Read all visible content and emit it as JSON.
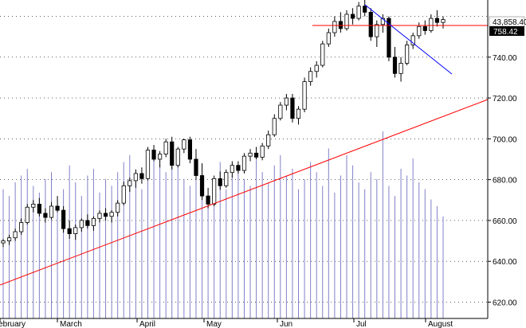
{
  "chart_data": {
    "type": "candlestick",
    "x_labels": [
      "February",
      "March",
      "April",
      "May",
      "Jun",
      "Jul",
      "August"
    ],
    "y_ticks": [
      620,
      640,
      660,
      680,
      700,
      720,
      740
    ],
    "ylim": [
      612,
      768
    ],
    "grid": true,
    "last_price_label": "758.42",
    "volume_label": "43,858.40",
    "candles": [
      [
        649.0,
        651.0,
        647.0,
        650.0
      ],
      [
        650.0,
        653.0,
        648.0,
        651.5
      ],
      [
        651.5,
        656.0,
        650.0,
        654.5
      ],
      [
        654.5,
        661.0,
        653.0,
        659.0
      ],
      [
        659.0,
        668.0,
        658.0,
        666.5
      ],
      [
        666.5,
        670.0,
        664.0,
        668.0
      ],
      [
        668.0,
        671.0,
        662.0,
        663.5
      ],
      [
        663.5,
        666.0,
        659.0,
        661.5
      ],
      [
        661.5,
        669.0,
        660.5,
        667.0
      ],
      [
        667.0,
        672.0,
        664.0,
        665.0
      ],
      [
        665.0,
        667.0,
        654.0,
        656.0
      ],
      [
        656.0,
        660.0,
        651.0,
        653.5
      ],
      [
        653.5,
        658.0,
        650.5,
        656.5
      ],
      [
        656.5,
        661.0,
        654.5,
        660.0
      ],
      [
        660.0,
        663.0,
        656.0,
        657.5
      ],
      [
        657.5,
        662.0,
        655.0,
        661.0
      ],
      [
        661.0,
        665.0,
        659.0,
        663.5
      ],
      [
        663.5,
        666.0,
        660.0,
        662.0
      ],
      [
        662.0,
        665.0,
        659.0,
        664.0
      ],
      [
        664.0,
        670.0,
        662.0,
        668.5
      ],
      [
        668.5,
        679.0,
        667.5,
        677.0
      ],
      [
        677.0,
        681.0,
        674.0,
        679.5
      ],
      [
        679.5,
        685.0,
        676.0,
        683.0
      ],
      [
        683.0,
        686.0,
        678.0,
        680.5
      ],
      [
        680.5,
        696.0,
        679.5,
        694.5
      ],
      [
        694.5,
        697.0,
        689.0,
        690.0
      ],
      [
        690.0,
        694.0,
        686.0,
        692.5
      ],
      [
        692.5,
        700.0,
        691.0,
        698.5
      ],
      [
        698.5,
        701.0,
        685.0,
        687.0
      ],
      [
        687.0,
        696.0,
        686.0,
        695.0
      ],
      [
        695.0,
        700.0,
        693.0,
        699.5
      ],
      [
        699.5,
        701.0,
        688.0,
        690.0
      ],
      [
        690.0,
        695.0,
        680.0,
        682.0
      ],
      [
        682.0,
        688.0,
        670.0,
        672.0
      ],
      [
        672.0,
        676.0,
        666.0,
        668.0
      ],
      [
        668.0,
        682.0,
        667.0,
        680.5
      ],
      [
        680.5,
        684.0,
        675.0,
        677.0
      ],
      [
        677.0,
        685.0,
        676.0,
        683.5
      ],
      [
        683.5,
        689.0,
        681.0,
        687.0
      ],
      [
        687.0,
        689.0,
        683.0,
        684.5
      ],
      [
        684.5,
        693.0,
        683.0,
        691.5
      ],
      [
        691.5,
        695.0,
        689.0,
        693.0
      ],
      [
        693.0,
        696.0,
        690.0,
        691.0
      ],
      [
        691.0,
        698.0,
        689.5,
        696.5
      ],
      [
        696.5,
        704.0,
        695.0,
        702.0
      ],
      [
        702.0,
        712.0,
        701.0,
        710.0
      ],
      [
        710.0,
        718.0,
        709.0,
        716.5
      ],
      [
        716.5,
        722.0,
        714.0,
        720.0
      ],
      [
        720.0,
        722.0,
        708.0,
        710.0
      ],
      [
        710.0,
        716.0,
        707.0,
        714.5
      ],
      [
        714.5,
        730.0,
        713.0,
        728.0
      ],
      [
        728.0,
        735.0,
        726.0,
        733.0
      ],
      [
        733.0,
        738.0,
        730.0,
        736.0
      ],
      [
        736.0,
        748.0,
        735.0,
        746.5
      ],
      [
        746.5,
        754.0,
        745.0,
        752.0
      ],
      [
        752.0,
        760.0,
        750.0,
        757.5
      ],
      [
        757.5,
        762.0,
        752.0,
        754.0
      ],
      [
        754.0,
        763.0,
        753.0,
        761.0
      ],
      [
        761.0,
        764.0,
        756.0,
        759.0
      ],
      [
        759.0,
        767.0,
        758.0,
        765.0
      ],
      [
        765.0,
        768.0,
        760.0,
        762.0
      ],
      [
        762.0,
        764.0,
        748.0,
        750.0
      ],
      [
        750.0,
        758.0,
        745.0,
        756.0
      ],
      [
        756.0,
        761.0,
        752.0,
        759.0
      ],
      [
        759.0,
        760.0,
        738.0,
        740.0
      ],
      [
        740.0,
        745.0,
        730.0,
        732.0
      ],
      [
        732.0,
        740.0,
        728.0,
        737.0
      ],
      [
        737.0,
        748.0,
        736.0,
        746.0
      ],
      [
        746.0,
        752.0,
        744.0,
        750.5
      ],
      [
        750.5,
        757.0,
        749.0,
        755.0
      ],
      [
        755.0,
        758.0,
        751.0,
        753.0
      ],
      [
        753.0,
        761.0,
        752.0,
        759.0
      ],
      [
        759.0,
        763.0,
        755.0,
        757.0
      ],
      [
        757.0,
        760.0,
        754.0,
        758.4
      ]
    ],
    "volume": [
      38,
      36,
      40,
      42,
      44,
      39,
      37,
      41,
      43,
      35,
      38,
      45,
      40,
      36,
      42,
      44,
      37,
      41,
      39,
      43,
      46,
      48,
      40,
      38,
      42,
      47,
      45,
      43,
      52,
      49,
      41,
      39,
      44,
      37,
      35,
      40,
      46,
      38,
      42,
      44,
      41,
      39,
      47,
      43,
      40,
      45,
      48,
      42,
      44,
      38,
      41,
      46,
      43,
      39,
      50,
      37,
      42,
      48,
      45,
      40,
      38,
      43,
      41,
      55,
      39,
      36,
      44,
      42,
      47,
      40,
      38,
      35,
      33,
      30
    ]
  }
}
